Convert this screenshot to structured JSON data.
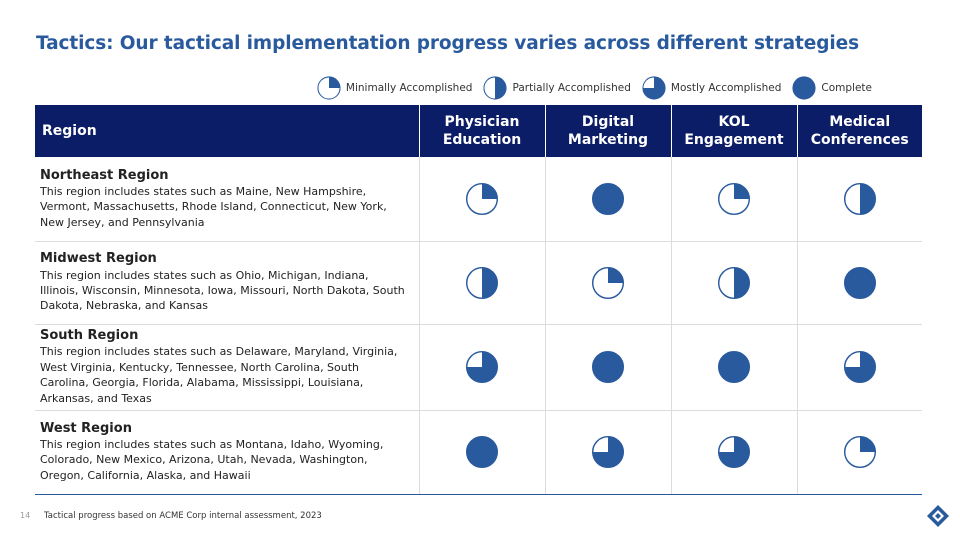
{
  "title": "Tactics: Our tactical implementation progress varies across different strategies",
  "colors": {
    "accent": "#2a5a9e",
    "header_bg": "#0b1d66"
  },
  "legend": [
    {
      "level": 0.25,
      "label": "Minimally Accomplished"
    },
    {
      "level": 0.5,
      "label": "Partially Accomplished"
    },
    {
      "level": 0.75,
      "label": "Mostly Accomplished"
    },
    {
      "level": 1,
      "label": "Complete"
    }
  ],
  "table": {
    "headers": [
      "Region",
      "Physician\nEducation",
      "Digital\nMarketing",
      "KOL\nEngagement",
      "Medical\nConferences"
    ],
    "rows": [
      {
        "name": "Northeast Region",
        "description": "This region includes states such as Maine, New Hampshire, Vermont, Massachusetts, Rhode Island, Connecticut, New York, New Jersey, and Pennsylvania",
        "levels": [
          0.25,
          1,
          0.25,
          0.5
        ]
      },
      {
        "name": "Midwest Region",
        "description": "This region includes states such as Ohio, Michigan, Indiana, Illinois, Wisconsin, Minnesota, Iowa, Missouri, North Dakota, South Dakota, Nebraska, and Kansas",
        "levels": [
          0.5,
          0.25,
          0.5,
          1
        ]
      },
      {
        "name": "South Region",
        "description": "This region includes states such as Delaware, Maryland, Virginia, West Virginia, Kentucky, Tennessee, North Carolina, South Carolina, Georgia, Florida, Alabama, Mississippi, Louisiana, Arkansas, and Texas",
        "levels": [
          0.75,
          1,
          1,
          0.75
        ]
      },
      {
        "name": "West Region",
        "description": "This region includes states such as Montana, Idaho, Wyoming, Colorado, New Mexico, Arizona, Utah, Nevada, Washington, Oregon, California, Alaska, and Hawaii",
        "levels": [
          1,
          0.75,
          0.75,
          0.25
        ]
      }
    ]
  },
  "footer": {
    "page_number": "14",
    "note": "Tactical progress based on ACME Corp internal assessment, 2023"
  },
  "logo_icon": "acme-logo-icon"
}
